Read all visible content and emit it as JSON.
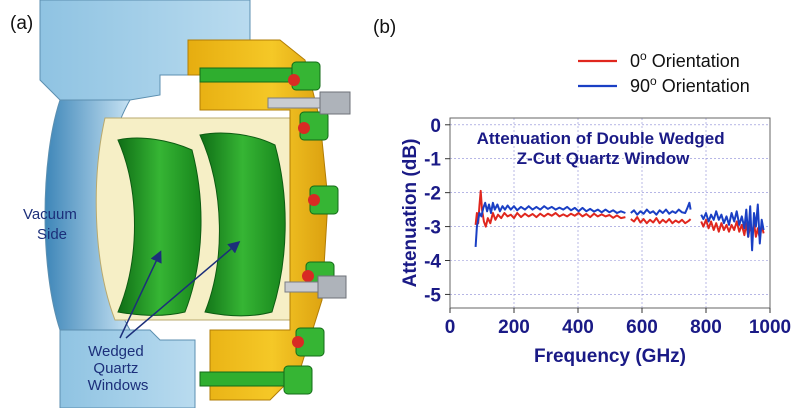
{
  "panel_a": {
    "label": "(a)",
    "callout_vacuum": [
      "Vacuum",
      "Side"
    ],
    "callout_windows": [
      "Wedged",
      "Quartz",
      "Windows"
    ],
    "colors": {
      "flange": "#a9d1ea",
      "gold": "#f2c21c",
      "green": "#2fae2f",
      "cream": "#f6efc6"
    }
  },
  "panel_b": {
    "label": "(b)"
  },
  "chart_data": {
    "type": "line",
    "title": [
      "Attenuation of Double Wedged",
      "Z-Cut Quartz Window"
    ],
    "xlabel": "Frequency (GHz)",
    "ylabel": "Attenuation (dB)",
    "xlim": [
      0,
      1000
    ],
    "ylim": [
      -5.4,
      0.2
    ],
    "xticks": [
      "0",
      "200",
      "400",
      "600",
      "800",
      "1000"
    ],
    "yticks": [
      "0",
      "-1",
      "-2",
      "-3",
      "-4",
      "-5"
    ],
    "grid": true,
    "legend_placement": "top-right, outside plot",
    "series": [
      {
        "name": "0° Orientation",
        "legend_main": "0",
        "legend_sup": "o",
        "legend_rest": " Orientation",
        "color": "#e0271e",
        "segments": [
          [
            [
              80,
              -2.95
            ],
            [
              84,
              -2.6
            ],
            [
              88,
              -2.9
            ],
            [
              92,
              -2.4
            ],
            [
              96,
              -1.95
            ],
            [
              100,
              -2.5
            ],
            [
              106,
              -2.85
            ],
            [
              112,
              -3.0
            ],
            [
              118,
              -2.75
            ],
            [
              126,
              -2.9
            ],
            [
              134,
              -2.6
            ],
            [
              142,
              -2.8
            ],
            [
              150,
              -2.65
            ],
            [
              160,
              -2.75
            ],
            [
              170,
              -2.6
            ],
            [
              180,
              -2.7
            ],
            [
              190,
              -2.65
            ],
            [
              200,
              -2.75
            ],
            [
              210,
              -2.6
            ],
            [
              222,
              -2.72
            ],
            [
              234,
              -2.62
            ],
            [
              246,
              -2.7
            ],
            [
              258,
              -2.63
            ],
            [
              270,
              -2.72
            ],
            [
              282,
              -2.62
            ],
            [
              294,
              -2.7
            ],
            [
              306,
              -2.62
            ],
            [
              318,
              -2.68
            ],
            [
              330,
              -2.6
            ],
            [
              342,
              -2.7
            ],
            [
              354,
              -2.64
            ],
            [
              366,
              -2.7
            ],
            [
              378,
              -2.62
            ],
            [
              390,
              -2.68
            ],
            [
              402,
              -2.6
            ],
            [
              414,
              -2.7
            ],
            [
              426,
              -2.63
            ],
            [
              438,
              -2.72
            ],
            [
              450,
              -2.62
            ],
            [
              462,
              -2.7
            ],
            [
              474,
              -2.64
            ],
            [
              486,
              -2.7
            ],
            [
              498,
              -2.66
            ],
            [
              510,
              -2.74
            ],
            [
              522,
              -2.67
            ],
            [
              534,
              -2.75
            ],
            [
              548,
              -2.72
            ]
          ],
          [
            [
              565,
              -2.78
            ],
            [
              575,
              -2.85
            ],
            [
              585,
              -2.72
            ],
            [
              595,
              -2.88
            ],
            [
              605,
              -2.78
            ],
            [
              615,
              -2.9
            ],
            [
              625,
              -2.8
            ],
            [
              635,
              -2.88
            ],
            [
              645,
              -2.75
            ],
            [
              655,
              -2.9
            ],
            [
              665,
              -2.8
            ],
            [
              675,
              -2.88
            ],
            [
              685,
              -2.78
            ],
            [
              695,
              -2.9
            ],
            [
              705,
              -2.82
            ],
            [
              715,
              -2.88
            ],
            [
              725,
              -2.8
            ],
            [
              735,
              -2.9
            ],
            [
              745,
              -2.84
            ],
            [
              752,
              -2.78
            ]
          ],
          [
            [
              785,
              -2.85
            ],
            [
              792,
              -3.0
            ],
            [
              800,
              -2.8
            ],
            [
              808,
              -3.05
            ],
            [
              816,
              -2.85
            ],
            [
              824,
              -3.1
            ],
            [
              832,
              -2.9
            ],
            [
              840,
              -3.15
            ],
            [
              848,
              -2.9
            ],
            [
              856,
              -3.1
            ],
            [
              864,
              -2.95
            ],
            [
              872,
              -3.15
            ],
            [
              880,
              -2.95
            ],
            [
              888,
              -3.1
            ],
            [
              896,
              -2.85
            ],
            [
              904,
              -3.15
            ],
            [
              912,
              -2.95
            ],
            [
              920,
              -3.25
            ],
            [
              926,
              -2.9
            ],
            [
              932,
              -3.3
            ],
            [
              938,
              -2.95
            ],
            [
              944,
              -3.25
            ],
            [
              950,
              -2.9
            ],
            [
              956,
              -3.3
            ],
            [
              962,
              -3.05
            ],
            [
              968,
              -3.35
            ],
            [
              974,
              -2.95
            ],
            [
              980,
              -3.2
            ]
          ]
        ]
      },
      {
        "name": "90° Orientation",
        "legend_main": "90",
        "legend_sup": "o",
        "legend_rest": " Orientation",
        "color": "#1a3fc4",
        "segments": [
          [
            [
              80,
              -3.6
            ],
            [
              84,
              -3.0
            ],
            [
              88,
              -2.8
            ],
            [
              92,
              -2.6
            ],
            [
              98,
              -2.7
            ],
            [
              104,
              -2.45
            ],
            [
              110,
              -2.3
            ],
            [
              116,
              -2.55
            ],
            [
              122,
              -2.35
            ],
            [
              128,
              -2.6
            ],
            [
              134,
              -2.3
            ],
            [
              140,
              -2.5
            ],
            [
              148,
              -2.35
            ],
            [
              156,
              -2.55
            ],
            [
              164,
              -2.4
            ],
            [
              172,
              -2.5
            ],
            [
              180,
              -2.38
            ],
            [
              190,
              -2.5
            ],
            [
              200,
              -2.4
            ],
            [
              210,
              -2.52
            ],
            [
              222,
              -2.42
            ],
            [
              234,
              -2.5
            ],
            [
              246,
              -2.4
            ],
            [
              258,
              -2.5
            ],
            [
              270,
              -2.42
            ],
            [
              282,
              -2.5
            ],
            [
              294,
              -2.4
            ],
            [
              306,
              -2.48
            ],
            [
              318,
              -2.42
            ],
            [
              330,
              -2.5
            ],
            [
              342,
              -2.44
            ],
            [
              354,
              -2.5
            ],
            [
              366,
              -2.42
            ],
            [
              378,
              -2.52
            ],
            [
              390,
              -2.45
            ],
            [
              402,
              -2.55
            ],
            [
              414,
              -2.45
            ],
            [
              426,
              -2.55
            ],
            [
              438,
              -2.48
            ],
            [
              450,
              -2.56
            ],
            [
              462,
              -2.5
            ],
            [
              474,
              -2.58
            ],
            [
              486,
              -2.5
            ],
            [
              498,
              -2.58
            ],
            [
              510,
              -2.52
            ],
            [
              522,
              -2.6
            ],
            [
              534,
              -2.55
            ],
            [
              548,
              -2.6
            ]
          ],
          [
            [
              565,
              -2.6
            ],
            [
              575,
              -2.52
            ],
            [
              585,
              -2.65
            ],
            [
              595,
              -2.55
            ],
            [
              605,
              -2.62
            ],
            [
              615,
              -2.5
            ],
            [
              625,
              -2.6
            ],
            [
              635,
              -2.55
            ],
            [
              645,
              -2.65
            ],
            [
              655,
              -2.52
            ],
            [
              665,
              -2.6
            ],
            [
              675,
              -2.5
            ],
            [
              685,
              -2.62
            ],
            [
              695,
              -2.55
            ],
            [
              705,
              -2.6
            ],
            [
              715,
              -2.5
            ],
            [
              725,
              -2.58
            ],
            [
              735,
              -2.6
            ],
            [
              742,
              -2.45
            ],
            [
              748,
              -2.3
            ],
            [
              752,
              -2.5
            ]
          ],
          [
            [
              785,
              -2.65
            ],
            [
              792,
              -2.78
            ],
            [
              800,
              -2.6
            ],
            [
              808,
              -2.85
            ],
            [
              816,
              -2.65
            ],
            [
              824,
              -2.8
            ],
            [
              832,
              -2.55
            ],
            [
              840,
              -2.8
            ],
            [
              848,
              -2.65
            ],
            [
              856,
              -2.9
            ],
            [
              864,
              -2.7
            ],
            [
              872,
              -2.95
            ],
            [
              880,
              -2.6
            ],
            [
              888,
              -2.85
            ],
            [
              896,
              -2.55
            ],
            [
              904,
              -2.95
            ],
            [
              912,
              -2.7
            ],
            [
              920,
              -3.05
            ],
            [
              926,
              -2.5
            ],
            [
              932,
              -3.3
            ],
            [
              938,
              -2.4
            ],
            [
              944,
              -3.7
            ],
            [
              950,
              -2.6
            ],
            [
              956,
              -3.0
            ],
            [
              962,
              -2.35
            ],
            [
              968,
              -3.5
            ],
            [
              974,
              -2.8
            ],
            [
              980,
              -3.1
            ]
          ]
        ]
      }
    ]
  }
}
